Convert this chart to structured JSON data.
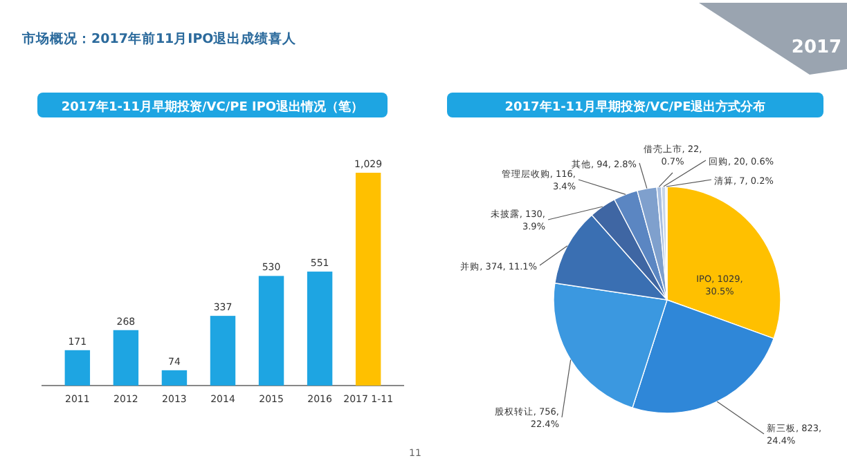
{
  "chart_data": [
    {
      "type": "bar",
      "title": "2017年1-11月早期投资/VC/PE IPO退出情况（笔）",
      "categories": [
        "2011",
        "2012",
        "2013",
        "2014",
        "2015",
        "2016",
        "2017 1-11"
      ],
      "values": [
        171,
        268,
        74,
        337,
        530,
        551,
        1029
      ],
      "colors": [
        "#1ea5e2",
        "#1ea5e2",
        "#1ea5e2",
        "#1ea5e2",
        "#1ea5e2",
        "#1ea5e2",
        "#ffc000"
      ],
      "value_labels": [
        "171",
        "268",
        "74",
        "337",
        "530",
        "551",
        "1,029"
      ],
      "annotations": [
        "市场概况：2017年前11月IPO退出成绩喜人",
        "2017",
        "11"
      ]
    },
    {
      "type": "pie",
      "title": "2017年1-11月早期投资/VC/PE退出方式分布",
      "categories": [
        "IPO",
        "新三板",
        "股权转让",
        "并购",
        "未披露",
        "管理层收购",
        "其他",
        "借壳上市",
        "回购",
        "清算"
      ],
      "values": [
        1029,
        823,
        756,
        374,
        130,
        116,
        94,
        22,
        20,
        7
      ],
      "colors": [
        "#ffc000",
        "#2f87d8",
        "#3b98e0",
        "#3a6fb2",
        "#3f66a3",
        "#5b86c2",
        "#7fa0cd",
        "#a9bfe0",
        "#c6d5ea",
        "#dfe7f3"
      ],
      "value_labels": [
        "1029, 30.5%",
        "823, 24.4%",
        "756, 22.4%",
        "374, 11.1%",
        "130, 3.9%",
        "116, 3.4%",
        "94, 2.8%",
        "22, 0.7%",
        "20, 0.6%",
        "7, 0.2%"
      ]
    }
  ]
}
